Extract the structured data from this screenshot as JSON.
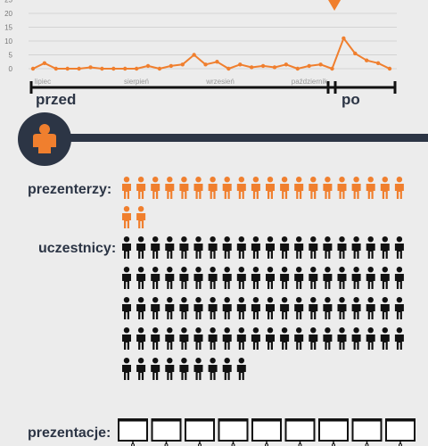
{
  "chart_data": {
    "type": "line",
    "title": "",
    "xlabel": "",
    "ylabel": "",
    "y_ticks": [
      "0",
      "5",
      "10",
      "15",
      "20",
      "25"
    ],
    "ylim": [
      0,
      25
    ],
    "month_labels": [
      "lipiec",
      "sierpień",
      "wrzesień",
      "październik"
    ],
    "period_labels": [
      "przed",
      "po"
    ],
    "series_color": "#f07f2e",
    "values": [
      0,
      2,
      0,
      0,
      0,
      0.5,
      0,
      0,
      0,
      0,
      1,
      0,
      1,
      1.5,
      5,
      1.5,
      2.5,
      0,
      1.5,
      0.5,
      1,
      0.5,
      1.5,
      0,
      1,
      1.5,
      0,
      11,
      5.5,
      3,
      2,
      0
    ],
    "event_index": 27,
    "grid": true
  },
  "person_rows": {
    "presenters": {
      "label": "prezenterzy:",
      "count": 22,
      "color": "#f07f2e"
    },
    "participants": {
      "label": "uczestnicy:",
      "count": 89,
      "color": "#111111"
    },
    "presentations": {
      "label": "prezentacje:",
      "count": 9
    }
  },
  "colors": {
    "accent": "#f07f2e",
    "dark": "#2c3545",
    "background": "#ececec"
  }
}
